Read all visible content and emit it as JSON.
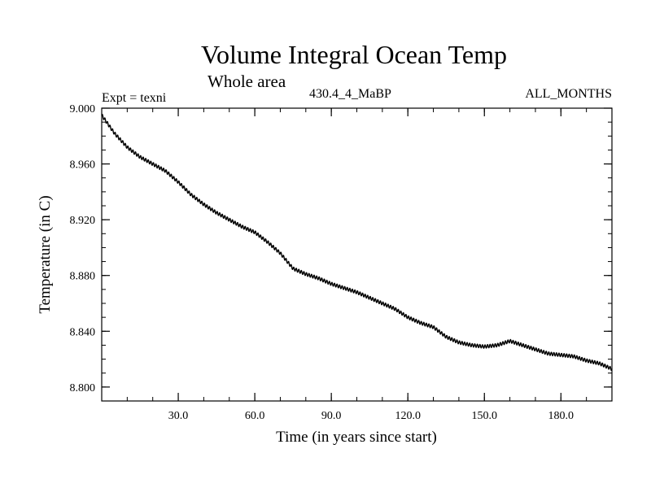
{
  "chart_data": {
    "type": "line",
    "title": "Volume Integral Ocean Temp",
    "subtitle": "Whole area",
    "expt_label": "Expt = texni",
    "run_label": "430.4_4_MaBP",
    "months_label": "ALL_MONTHS",
    "xlabel": "Time (in years since start)",
    "ylabel": "Temperature (in C)",
    "xlim": [
      0,
      200
    ],
    "ylim": [
      8.79,
      9.0
    ],
    "xticks": [
      30,
      60,
      90,
      120,
      150,
      180
    ],
    "xtick_labels": [
      "30.0",
      "60.0",
      "90.0",
      "120.0",
      "150.0",
      "180.0"
    ],
    "yticks": [
      8.8,
      8.84,
      8.88,
      8.92,
      8.96,
      9.0
    ],
    "ytick_labels": [
      "8.800",
      "8.840",
      "8.880",
      "8.920",
      "8.960",
      "9.000"
    ],
    "grid": false,
    "series": [
      {
        "name": "Volume Integral Ocean Temp",
        "color": "#000000",
        "seasonal_amplitude": 0.0012,
        "x": [
          0,
          5,
          10,
          15,
          20,
          25,
          30,
          35,
          40,
          45,
          50,
          55,
          60,
          65,
          70,
          75,
          80,
          85,
          90,
          95,
          100,
          105,
          110,
          115,
          120,
          125,
          130,
          135,
          140,
          145,
          150,
          155,
          160,
          165,
          170,
          175,
          180,
          185,
          190,
          195,
          200
        ],
        "values": [
          8.995,
          8.982,
          8.972,
          8.965,
          8.96,
          8.955,
          8.947,
          8.938,
          8.931,
          8.925,
          8.92,
          8.915,
          8.911,
          8.904,
          8.896,
          8.885,
          8.881,
          8.878,
          8.874,
          8.871,
          8.868,
          8.864,
          8.86,
          8.856,
          8.85,
          8.846,
          8.843,
          8.836,
          8.832,
          8.83,
          8.829,
          8.83,
          8.833,
          8.83,
          8.827,
          8.824,
          8.823,
          8.822,
          8.819,
          8.817,
          8.813
        ]
      }
    ]
  }
}
